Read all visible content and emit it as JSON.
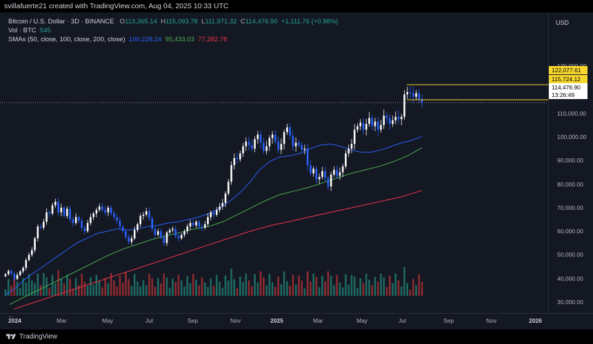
{
  "header": {
    "caption": "svillafuerte21 created with TradingView.com, Aug 04, 2025 10:33 UTC"
  },
  "legend": {
    "symbol": "Bitcoin / U.S. Dollar · 3D · BINANCE",
    "open_label": "O",
    "open_value": "113,365.14",
    "high_label": "H",
    "high_value": "115,093.78",
    "low_label": "L",
    "low_value": "111,971.32",
    "close_label": "C",
    "close_value": "114,476.90",
    "change": "+1,111.76 (+0.98%)",
    "vol_label": "Vol · BTC",
    "vol_value": "545",
    "sma_label": "SMAs (50, close, 100, close, 200, close)",
    "sma50_value": "100,228.24",
    "sma100_value": "95,433.03",
    "sma200_value": "77,282.78",
    "more": "..."
  },
  "price_axis": {
    "currency_button": "USD",
    "ticks": [
      "130,000.00",
      "110,000.00",
      "100,000.00",
      "90,000.00",
      "80,000.00",
      "70,000.00",
      "60,000.00",
      "50,000.00",
      "40,000.00",
      "30,000.00"
    ],
    "tick_values": [
      130000,
      110000,
      100000,
      90000,
      80000,
      70000,
      60000,
      50000,
      40000,
      30000
    ],
    "level_high": "122,077.61",
    "level_mid": "115,724.12",
    "last_price": "114,476.90",
    "countdown": "13:26:49"
  },
  "time_axis": {
    "labels": [
      {
        "text": "2024",
        "bold": true
      },
      {
        "text": "Mar",
        "bold": false
      },
      {
        "text": "May",
        "bold": false
      },
      {
        "text": "Jul",
        "bold": false
      },
      {
        "text": "Sep",
        "bold": false
      },
      {
        "text": "Nov",
        "bold": false
      },
      {
        "text": "2025",
        "bold": true
      },
      {
        "text": "Mar",
        "bold": false
      },
      {
        "text": "May",
        "bold": false
      },
      {
        "text": "Jul",
        "bold": false
      },
      {
        "text": "Sep",
        "bold": false
      },
      {
        "text": "Nov",
        "bold": false
      },
      {
        "text": "2026",
        "bold": true
      }
    ]
  },
  "footer": {
    "brand": "TradingView"
  },
  "colors": {
    "up": "#ffffff",
    "down": "#2962ff",
    "sma50": "#2962ff",
    "sma100": "#4caf50",
    "sma200": "#f23645",
    "level_line": "#f7d62e",
    "vol_up": "#1e6b62",
    "vol_down": "#8f2b31"
  },
  "chart_data": {
    "type": "candlestick",
    "symbol": "BTCUSD",
    "interval": "3D",
    "ylim": [
      26000,
      140000
    ],
    "log_scale": false,
    "candles_close": [
      41800,
      43200,
      42000,
      39800,
      41500,
      43000,
      44500,
      47800,
      50000,
      52000,
      57000,
      62000,
      61500,
      64000,
      68000,
      67500,
      71000,
      72500,
      68000,
      70000,
      66500,
      69500,
      65000,
      63500,
      66000,
      64500,
      61500,
      60000,
      63500,
      66000,
      67500,
      69000,
      70500,
      69000,
      68000,
      70000,
      67500,
      66000,
      64500,
      62000,
      60000,
      57500,
      55500,
      57000,
      60500,
      63000,
      66500,
      67000,
      68500,
      65500,
      61000,
      58500,
      60000,
      57500,
      55000,
      59500,
      60500,
      61000,
      58000,
      57000,
      58500,
      60000,
      62000,
      63500,
      62500,
      64000,
      62000,
      61500,
      63000,
      66000,
      68000,
      67000,
      69000,
      70500,
      72000,
      76000,
      81000,
      88000,
      91000,
      90500,
      93000,
      96000,
      98000,
      96500,
      95000,
      99000,
      101000,
      97500,
      94000,
      96000,
      99500,
      101000,
      98000,
      94500,
      97000,
      102000,
      104000,
      100500,
      96000,
      97500,
      96500,
      94500,
      95000,
      88000,
      84500,
      86500,
      82000,
      83000,
      85500,
      82500,
      79000,
      84000,
      86000,
      83500,
      85000,
      87500,
      93000,
      95000,
      97000,
      103000,
      104500,
      106000,
      103000,
      105500,
      108000,
      104500,
      106500,
      103000,
      105000,
      109000,
      108000,
      105500,
      107000,
      108500,
      107500,
      108500,
      118000,
      119000,
      118500,
      117000,
      118500,
      116000,
      114500
    ],
    "sma50": [
      33000,
      36000,
      40000,
      43000,
      46000,
      49000,
      52000,
      55000,
      57000,
      59000,
      60000,
      61000,
      60500,
      61000,
      62000,
      62500,
      63500,
      64000,
      65000,
      66000,
      67500,
      69500,
      72500,
      76000,
      80500,
      86000,
      89500,
      91500,
      92000,
      93000,
      95000,
      96500,
      97000,
      96000,
      94500,
      93500,
      93500,
      94500,
      96000,
      97500,
      98500,
      100200
    ],
    "sma100": [
      29000,
      32000,
      35000,
      38000,
      41000,
      44000,
      47000,
      50000,
      52500,
      54500,
      56500,
      58000,
      59500,
      61000,
      62000,
      64000,
      67000,
      70000,
      73000,
      75500,
      77000,
      78500,
      80500,
      82500,
      84500,
      86000,
      87500,
      89500,
      92000,
      95400
    ],
    "sma200": [
      27000,
      30000,
      33000,
      36000,
      39000,
      42000,
      45000,
      48000,
      51000,
      54000,
      57000,
      60000,
      62500,
      64500,
      66500,
      68500,
      70500,
      72500,
      74500,
      77300
    ],
    "key_levels": [
      122077.61,
      115724.12
    ],
    "last_price": 114476.9
  }
}
